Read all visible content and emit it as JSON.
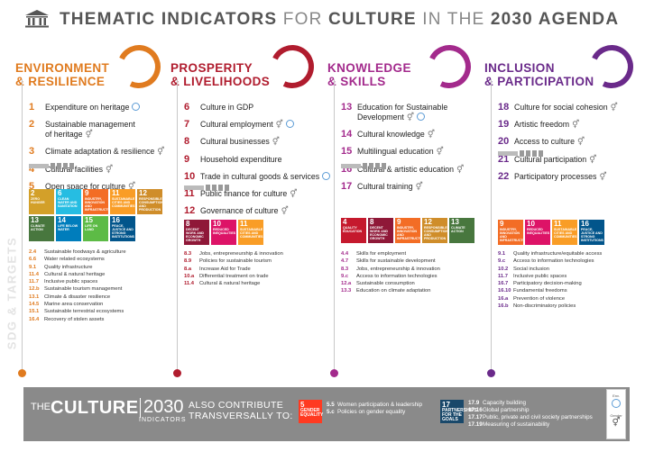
{
  "header": {
    "title_parts": [
      "THEMATIC INDICATORS",
      "FOR",
      "CULTURE",
      "IN THE",
      "2030 AGENDA"
    ]
  },
  "side_label": "SDG & TARGETS",
  "columns": [
    {
      "key": "env",
      "color": "#e07b1f",
      "heading_line1": "ENVIRONMENT",
      "heading_line2": "& RESILIENCE",
      "indicators": [
        {
          "n": "1",
          "line1": "Expenditure on heritage",
          "line2": "",
          "gender": false,
          "env": true
        },
        {
          "n": "2",
          "line1": "Sustainable management",
          "line2": "of heritage",
          "gender": true,
          "env": false
        },
        {
          "n": "3",
          "line1": "Climate adaptation & resilience",
          "line2": "",
          "gender": true,
          "env": false
        },
        {
          "n": "4",
          "line1": "Cultural facilities",
          "line2": "",
          "gender": true,
          "env": false
        },
        {
          "n": "5",
          "line1": "Open space for culture",
          "line2": "",
          "gender": true,
          "env": false
        }
      ],
      "sdgs": [
        {
          "num": "2",
          "label": "ZERO HUNGER",
          "color": "#d3a029"
        },
        {
          "num": "6",
          "label": "CLEAN WATER AND SANITATION",
          "color": "#26bde2"
        },
        {
          "num": "9",
          "label": "INDUSTRY, INNOVATION AND INFRASTRUCTURE",
          "color": "#f36d25"
        },
        {
          "num": "11",
          "label": "SUSTAINABLE CITIES AND COMMUNITIES",
          "color": "#f99d26"
        },
        {
          "num": "12",
          "label": "RESPONSIBLE CONSUMPTION AND PRODUCTION",
          "color": "#cf8d2a"
        },
        {
          "num": "13",
          "label": "CLIMATE ACTION",
          "color": "#48773e"
        },
        {
          "num": "14",
          "label": "LIFE BELOW WATER",
          "color": "#007dbc"
        },
        {
          "num": "15",
          "label": "LIFE ON LAND",
          "color": "#5dbb46"
        },
        {
          "num": "16",
          "label": "PEACE, JUSTICE AND STRONG INSTITUTIONS",
          "color": "#02558b"
        }
      ],
      "targets": [
        {
          "c": "2.4",
          "t": "Sustainable foodways & agriculture"
        },
        {
          "c": "6.6",
          "t": "Water related ecosystems"
        },
        {
          "c": "9.1",
          "t": "Quality infrastructure"
        },
        {
          "c": "11.4",
          "t": "Cultural & natural heritage"
        },
        {
          "c": "11.7",
          "t": "Inclusive public spaces"
        },
        {
          "c": "12.b",
          "t": "Sustainable tourism management"
        },
        {
          "c": "13.1",
          "t": "Climate & disaster resilience"
        },
        {
          "c": "14.5",
          "t": "Marine area conservation"
        },
        {
          "c": "15.1",
          "t": "Sustainable terrestrial ecosystems"
        },
        {
          "c": "16.4",
          "t": "Recovery of stolen assets"
        }
      ]
    },
    {
      "key": "pro",
      "color": "#b01c2e",
      "heading_line1": "PROSPERITY",
      "heading_line2": "& LIVELIHOODS",
      "indicators": [
        {
          "n": "6",
          "line1": "Culture in GDP",
          "line2": "",
          "gender": false,
          "env": false
        },
        {
          "n": "7",
          "line1": "Cultural employment",
          "line2": "",
          "gender": true,
          "env": true
        },
        {
          "n": "8",
          "line1": "Cultural businesses",
          "line2": "",
          "gender": true,
          "env": false
        },
        {
          "n": "9",
          "line1": "Household expenditure",
          "line2": "",
          "gender": false,
          "env": false
        },
        {
          "n": "10",
          "line1": "Trade in cultural goods & services",
          "line2": "",
          "gender": false,
          "env": true
        },
        {
          "n": "11",
          "line1": "Public finance for culture",
          "line2": "",
          "gender": true,
          "env": false
        },
        {
          "n": "12",
          "line1": "Governance of culture",
          "line2": "",
          "gender": true,
          "env": false
        }
      ],
      "sdgs": [
        {
          "num": "8",
          "label": "DECENT WORK AND ECONOMIC GROWTH",
          "color": "#8f1838"
        },
        {
          "num": "10",
          "label": "REDUCED INEQUALITIES",
          "color": "#dd1367"
        },
        {
          "num": "11",
          "label": "SUSTAINABLE CITIES AND COMMUNITIES",
          "color": "#f99d26"
        }
      ],
      "targets": [
        {
          "c": "8.3",
          "t": "Jobs, entrepreneurship & innovation"
        },
        {
          "c": "8.9",
          "t": "Policies for sustainable tourism"
        },
        {
          "c": "8.a",
          "t": "Increase Aid for Trade"
        },
        {
          "c": "10.a",
          "t": "Differential treatment on trade"
        },
        {
          "c": "11.4",
          "t": "Cultural & natural heritage"
        }
      ]
    },
    {
      "key": "kno",
      "color": "#a32a8c",
      "heading_line1": "KNOWLEDGE",
      "heading_line2": "& SKILLS",
      "indicators": [
        {
          "n": "13",
          "line1": "Education for Sustainable",
          "line2": "Development",
          "gender": true,
          "env": true
        },
        {
          "n": "14",
          "line1": "Cultural knowledge",
          "line2": "",
          "gender": true,
          "env": false
        },
        {
          "n": "15",
          "line1": "Multilingual education",
          "line2": "",
          "gender": true,
          "env": false
        },
        {
          "n": "16",
          "line1": "Cultural & artistic education",
          "line2": "",
          "gender": true,
          "env": false
        },
        {
          "n": "17",
          "line1": "Cultural training",
          "line2": "",
          "gender": true,
          "env": false
        }
      ],
      "sdgs": [
        {
          "num": "4",
          "label": "QUALITY EDUCATION",
          "color": "#c5192d"
        },
        {
          "num": "8",
          "label": "DECENT WORK AND ECONOMIC GROWTH",
          "color": "#8f1838"
        },
        {
          "num": "9",
          "label": "INDUSTRY, INNOVATION AND INFRASTRUCTURE",
          "color": "#f36d25"
        },
        {
          "num": "12",
          "label": "RESPONSIBLE CONSUMPTION AND PRODUCTION",
          "color": "#cf8d2a"
        },
        {
          "num": "13",
          "label": "CLIMATE ACTION",
          "color": "#48773e"
        }
      ],
      "targets": [
        {
          "c": "4.4",
          "t": "Skills for employment"
        },
        {
          "c": "4.7",
          "t": "Skills for sustainable development"
        },
        {
          "c": "8.3",
          "t": "Jobs, entrepreneurship & innovation"
        },
        {
          "c": "9.c",
          "t": "Access to information technologies"
        },
        {
          "c": "12.a",
          "t": "Sustainable consumption"
        },
        {
          "c": "13.3",
          "t": "Education on climate adaptation"
        }
      ]
    },
    {
      "key": "inc",
      "color": "#6a2a8a",
      "heading_line1": "INCLUSION",
      "heading_line2": "& PARTICIPATION",
      "indicators": [
        {
          "n": "18",
          "line1": "Culture for social cohesion",
          "line2": "",
          "gender": true,
          "env": false
        },
        {
          "n": "19",
          "line1": "Artistic freedom",
          "line2": "",
          "gender": true,
          "env": false
        },
        {
          "n": "20",
          "line1": "Access to culture",
          "line2": "",
          "gender": true,
          "env": false
        },
        {
          "n": "21",
          "line1": "Cultural participation",
          "line2": "",
          "gender": true,
          "env": false
        },
        {
          "n": "22",
          "line1": "Participatory processes",
          "line2": "",
          "gender": true,
          "env": false
        }
      ],
      "sdgs": [
        {
          "num": "9",
          "label": "INDUSTRY, INNOVATION AND INFRASTRUCTURE",
          "color": "#f36d25"
        },
        {
          "num": "10",
          "label": "REDUCED INEQUALITIES",
          "color": "#dd1367"
        },
        {
          "num": "11",
          "label": "SUSTAINABLE CITIES AND COMMUNITIES",
          "color": "#f99d26"
        },
        {
          "num": "16",
          "label": "PEACE, JUSTICE AND STRONG INSTITUTIONS",
          "color": "#02558b"
        }
      ],
      "targets": [
        {
          "c": "9.1",
          "t": "Quality infrastructure/equitable access"
        },
        {
          "c": "9.c",
          "t": "Access to information technologies"
        },
        {
          "c": "10.2",
          "t": "Social inclusion"
        },
        {
          "c": "11.7",
          "t": "Inclusive public spaces"
        },
        {
          "c": "16.7",
          "t": "Participatory decision-making"
        },
        {
          "c": "16.10",
          "t": "Fundamental freedoms"
        },
        {
          "c": "16.a",
          "t": "Prevention of violence"
        },
        {
          "c": "16.b",
          "t": "Non-discriminatory policies"
        }
      ]
    }
  ],
  "footer": {
    "the": "THE",
    "culture": "CULTURE",
    "year": "2030",
    "indicators": "INDICATORS",
    "also_line1": "ALSO CONTRIBUTE",
    "also_line2": "TRANSVERSALLY TO:",
    "sdg5": {
      "num": "5",
      "label": "GENDER EQUALITY",
      "color": "#ff3a21"
    },
    "sdg5_targets": [
      {
        "c": "5.5",
        "t": "Women participation & leadership"
      },
      {
        "c": "5.c",
        "t": "Policies on gender equality"
      }
    ],
    "sdg17": {
      "num": "17",
      "label": "PARTNERSHIPS FOR THE GOALS",
      "color": "#19486a"
    },
    "sdg17_targets": [
      {
        "c": "17.9",
        "t": "Capacity building"
      },
      {
        "c": "17.16",
        "t": "Global partnership"
      },
      {
        "c": "17.17",
        "t": "Public, private and civil society partnerships"
      },
      {
        "c": "17.19",
        "t": "Measuring of sustainability"
      }
    ],
    "legend_env": "Env.",
    "legend_gender": "Gender"
  }
}
